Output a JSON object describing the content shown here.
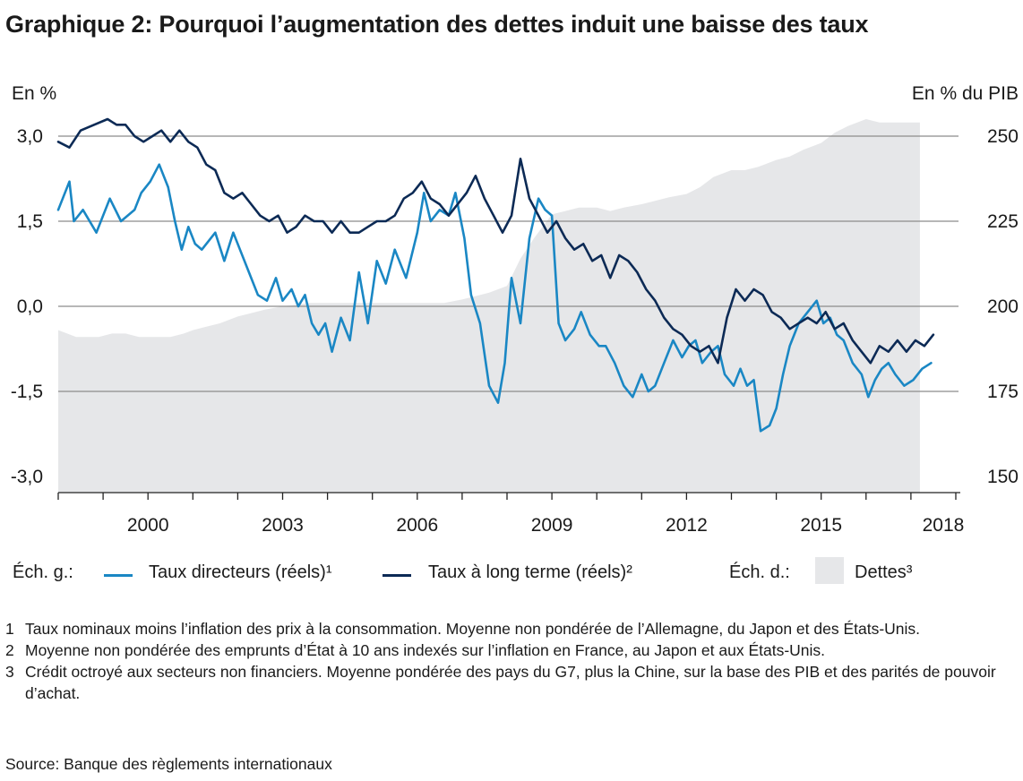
{
  "title": "Graphique 2: Pourquoi l’augmentation des dettes induit une baisse des taux",
  "colors": {
    "policy": "#1a87c4",
    "longterm": "#0c2a55",
    "debt": "#e6e7e9",
    "grid": "#8c8c8c"
  },
  "chart_data": {
    "type": "line",
    "left_axis": {
      "label": "En %",
      "range": [
        -3.0,
        3.0
      ],
      "ticks": [
        "3,0",
        "1,5",
        "0,0",
        "-1,5",
        "-3,0"
      ],
      "tick_values": [
        3.0,
        1.5,
        0.0,
        -1.5,
        -3.0
      ]
    },
    "right_axis": {
      "label": "En % du PIB",
      "range": [
        150,
        250
      ],
      "ticks": [
        "250",
        "225",
        "200",
        "175",
        "150"
      ],
      "tick_values": [
        250,
        225,
        200,
        175,
        150
      ]
    },
    "x_axis": {
      "range": [
        1998.0,
        2018.1
      ],
      "tick_labels": [
        "2000",
        "2003",
        "2006",
        "2009",
        "2012",
        "2015",
        "2018"
      ],
      "tick_values": [
        2000,
        2003,
        2006,
        2009,
        2012,
        2015,
        2018
      ]
    },
    "grid": true,
    "series": [
      {
        "name": "Taux directeurs (réels)¹",
        "axis": "left",
        "style": "line",
        "color_key": "policy",
        "x": [
          1998.0,
          1998.25,
          1998.35,
          1998.55,
          1998.85,
          1999.15,
          1999.4,
          1999.7,
          1999.85,
          2000.05,
          2000.25,
          2000.45,
          2000.6,
          2000.75,
          2000.9,
          2001.05,
          2001.2,
          2001.5,
          2001.7,
          2001.9,
          2002.05,
          2002.25,
          2002.45,
          2002.65,
          2002.85,
          2003.0,
          2003.2,
          2003.35,
          2003.5,
          2003.65,
          2003.8,
          2003.95,
          2004.1,
          2004.3,
          2004.5,
          2004.7,
          2004.9,
          2005.1,
          2005.3,
          2005.5,
          2005.75,
          2006.0,
          2006.15,
          2006.3,
          2006.5,
          2006.7,
          2006.85,
          2007.05,
          2007.2,
          2007.4,
          2007.6,
          2007.8,
          2007.95,
          2008.1,
          2008.3,
          2008.5,
          2008.7,
          2008.85,
          2009.0,
          2009.15,
          2009.3,
          2009.5,
          2009.65,
          2009.85,
          2010.05,
          2010.2,
          2010.4,
          2010.6,
          2010.8,
          2011.0,
          2011.15,
          2011.3,
          2011.5,
          2011.7,
          2011.9,
          2012.05,
          2012.2,
          2012.35,
          2012.55,
          2012.7,
          2012.85,
          2013.05,
          2013.2,
          2013.35,
          2013.5,
          2013.65,
          2013.85,
          2014.0,
          2014.15,
          2014.3,
          2014.5,
          2014.7,
          2014.9,
          2015.05,
          2015.2,
          2015.35,
          2015.5,
          2015.7,
          2015.9,
          2016.05,
          2016.2,
          2016.35,
          2016.5,
          2016.65,
          2016.85,
          2017.05,
          2017.25,
          2017.45
        ],
        "y": [
          1.7,
          2.2,
          1.5,
          1.7,
          1.3,
          1.9,
          1.5,
          1.7,
          2.0,
          2.2,
          2.5,
          2.1,
          1.5,
          1.0,
          1.4,
          1.1,
          1.0,
          1.3,
          0.8,
          1.3,
          1.0,
          0.6,
          0.2,
          0.1,
          0.5,
          0.1,
          0.3,
          0.0,
          0.2,
          -0.3,
          -0.5,
          -0.3,
          -0.8,
          -0.2,
          -0.6,
          0.6,
          -0.3,
          0.8,
          0.4,
          1.0,
          0.5,
          1.3,
          2.0,
          1.5,
          1.7,
          1.6,
          2.0,
          1.2,
          0.2,
          -0.3,
          -1.4,
          -1.7,
          -1.0,
          0.5,
          -0.3,
          1.2,
          1.9,
          1.7,
          1.6,
          -0.3,
          -0.6,
          -0.4,
          -0.1,
          -0.5,
          -0.7,
          -0.7,
          -1.0,
          -1.4,
          -1.6,
          -1.2,
          -1.5,
          -1.4,
          -1.0,
          -0.6,
          -0.9,
          -0.7,
          -0.6,
          -1.0,
          -0.8,
          -0.7,
          -1.2,
          -1.4,
          -1.1,
          -1.4,
          -1.3,
          -2.2,
          -2.1,
          -1.8,
          -1.2,
          -0.7,
          -0.3,
          -0.1,
          0.1,
          -0.3,
          -0.2,
          -0.5,
          -0.6,
          -1.0,
          -1.2,
          -1.6,
          -1.3,
          -1.1,
          -1.0,
          -1.2,
          -1.4,
          -1.3,
          -1.1,
          -1.0
        ]
      },
      {
        "name": "Taux à long terme (réels)²",
        "axis": "left",
        "style": "line",
        "color_key": "longterm",
        "x": [
          1998.0,
          1998.25,
          1998.5,
          1998.8,
          1999.1,
          1999.3,
          1999.5,
          1999.7,
          1999.9,
          2000.1,
          2000.3,
          2000.5,
          2000.7,
          2000.9,
          2001.1,
          2001.3,
          2001.5,
          2001.7,
          2001.9,
          2002.1,
          2002.3,
          2002.5,
          2002.7,
          2002.9,
          2003.1,
          2003.3,
          2003.5,
          2003.7,
          2003.9,
          2004.1,
          2004.3,
          2004.5,
          2004.7,
          2004.9,
          2005.1,
          2005.3,
          2005.5,
          2005.7,
          2005.9,
          2006.1,
          2006.3,
          2006.5,
          2006.7,
          2006.9,
          2007.1,
          2007.3,
          2007.5,
          2007.7,
          2007.9,
          2008.1,
          2008.3,
          2008.5,
          2008.7,
          2008.9,
          2009.1,
          2009.3,
          2009.5,
          2009.7,
          2009.9,
          2010.1,
          2010.3,
          2010.5,
          2010.7,
          2010.9,
          2011.1,
          2011.3,
          2011.5,
          2011.7,
          2011.9,
          2012.1,
          2012.3,
          2012.5,
          2012.7,
          2012.9,
          2013.1,
          2013.3,
          2013.5,
          2013.7,
          2013.9,
          2014.1,
          2014.3,
          2014.5,
          2014.7,
          2014.9,
          2015.1,
          2015.3,
          2015.5,
          2015.7,
          2015.9,
          2016.1,
          2016.3,
          2016.5,
          2016.7,
          2016.9,
          2017.1,
          2017.3,
          2017.5
        ],
        "y": [
          2.9,
          2.8,
          3.1,
          3.2,
          3.3,
          3.2,
          3.2,
          3.0,
          2.9,
          3.0,
          3.1,
          2.9,
          3.1,
          2.9,
          2.8,
          2.5,
          2.4,
          2.0,
          1.9,
          2.0,
          1.8,
          1.6,
          1.5,
          1.6,
          1.3,
          1.4,
          1.6,
          1.5,
          1.5,
          1.3,
          1.5,
          1.3,
          1.3,
          1.4,
          1.5,
          1.5,
          1.6,
          1.9,
          2.0,
          2.2,
          1.9,
          1.8,
          1.6,
          1.8,
          2.0,
          2.3,
          1.9,
          1.6,
          1.3,
          1.6,
          2.6,
          1.9,
          1.6,
          1.3,
          1.5,
          1.2,
          1.0,
          1.1,
          0.8,
          0.9,
          0.5,
          0.9,
          0.8,
          0.6,
          0.3,
          0.1,
          -0.2,
          -0.4,
          -0.5,
          -0.7,
          -0.8,
          -0.7,
          -1.0,
          -0.2,
          0.3,
          0.1,
          0.3,
          0.2,
          -0.1,
          -0.2,
          -0.4,
          -0.3,
          -0.2,
          -0.3,
          -0.1,
          -0.4,
          -0.3,
          -0.6,
          -0.8,
          -1.0,
          -0.7,
          -0.8,
          -0.6,
          -0.8,
          -0.6,
          -0.7,
          -0.5
        ]
      },
      {
        "name": "Dettes³",
        "axis": "right",
        "style": "area",
        "color_key": "debt",
        "x": [
          1998.0,
          1998.2,
          1998.4,
          1998.6,
          1998.9,
          1999.2,
          1999.5,
          1999.8,
          2000.0,
          2000.3,
          2000.5,
          2000.8,
          2001.0,
          2001.3,
          2001.6,
          2002.0,
          2002.3,
          2002.6,
          2003.0,
          2003.3,
          2003.6,
          2004.0,
          2004.3,
          2004.6,
          2005.0,
          2005.3,
          2005.6,
          2006.0,
          2006.3,
          2006.6,
          2007.0,
          2007.3,
          2007.6,
          2008.0,
          2008.3,
          2008.6,
          2009.0,
          2009.3,
          2009.6,
          2010.0,
          2010.3,
          2010.6,
          2011.0,
          2011.3,
          2011.6,
          2012.0,
          2012.3,
          2012.6,
          2013.0,
          2013.3,
          2013.6,
          2014.0,
          2014.3,
          2014.6,
          2015.0,
          2015.3,
          2015.6,
          2016.0,
          2016.3,
          2016.6,
          2017.0,
          2017.2
        ],
        "y": [
          193,
          192,
          191,
          191,
          191,
          192,
          192,
          191,
          191,
          191,
          191,
          192,
          193,
          194,
          195,
          197,
          198,
          199,
          200,
          200.5,
          201,
          201,
          201,
          201,
          201,
          201,
          201,
          201,
          201,
          201,
          202,
          203,
          204,
          206,
          214,
          220,
          227,
          228,
          229,
          229,
          228,
          229,
          230,
          231,
          232,
          233,
          235,
          238,
          240,
          240,
          241,
          243,
          244,
          246,
          248,
          251,
          253,
          255,
          254,
          254,
          254,
          254
        ]
      }
    ]
  },
  "legend": {
    "left_scale": "Éch. g.:",
    "right_scale": "Éch. d.:",
    "policy": "Taux directeurs (réels)¹",
    "longterm": "Taux à long terme (réels)²",
    "debt": "Dettes³"
  },
  "footnotes": [
    {
      "num": "1",
      "text": "Taux nominaux moins l’inflation des prix à la consommation. Moyenne non pondérée de l’Allemagne, du Japon et des États-Unis."
    },
    {
      "num": "2",
      "text": "Moyenne non pondérée des emprunts d’État à 10 ans indexés sur l’inflation en France, au Japon et aux États-Unis."
    },
    {
      "num": "3",
      "text": "Crédit octroyé aux secteurs non financiers. Moyenne pondérée des pays du G7, plus la Chine, sur la base des PIB et des parités de pouvoir d’achat."
    }
  ],
  "source": "Source: Banque des règlements internationaux"
}
